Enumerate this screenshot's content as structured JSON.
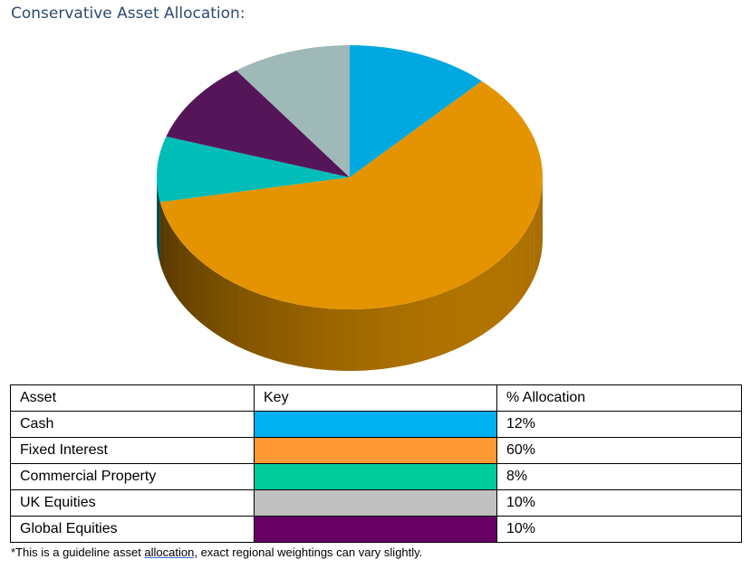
{
  "title": "Conservative Asset Allocation:",
  "chart_data": {
    "type": "pie",
    "title": "Conservative Asset Allocation:",
    "style": "3d",
    "slices": [
      {
        "label": "Cash",
        "value": 12,
        "color": "#00a8e0"
      },
      {
        "label": "Fixed Interest",
        "value": 60,
        "color": "#e39400"
      },
      {
        "label": "Commercial Property",
        "value": 8,
        "color": "#00bdb8"
      },
      {
        "label": "Global Equities",
        "value": 10,
        "color": "#541659"
      },
      {
        "label": "UK Equities",
        "value": 10,
        "color": "#9fb8b8"
      }
    ]
  },
  "table": {
    "headers": [
      "Asset",
      "Key",
      "% Allocation"
    ],
    "rows": [
      {
        "asset": "Cash",
        "key_color": "#00b0f0",
        "allocation": "12%"
      },
      {
        "asset": "Fixed Interest",
        "key_color": "#ff9933",
        "allocation": "60%"
      },
      {
        "asset": "Commercial Property",
        "key_color": "#00cc99",
        "allocation": "8%"
      },
      {
        "asset": "UK Equities",
        "key_color": "#c0c0c0",
        "allocation": "10%"
      },
      {
        "asset": "Global Equities",
        "key_color": "#660066",
        "allocation": "10%"
      }
    ]
  },
  "footnote": {
    "before": "*This is a guideline asset ",
    "underlined": "allocation,",
    "after": " exact regional weightings can vary slightly."
  }
}
